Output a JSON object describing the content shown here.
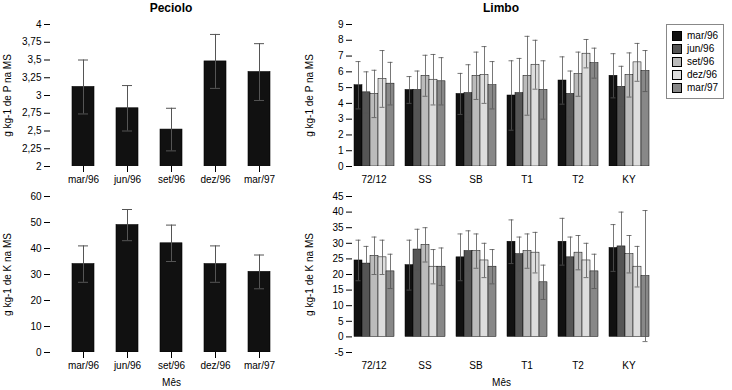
{
  "chart_data": [
    {
      "type": "bar",
      "title": "Peciolo",
      "categories": [
        "mar/96",
        "jun/96",
        "set/96",
        "dez/96",
        "mar/97"
      ],
      "values": [
        3.12,
        2.82,
        2.52,
        3.48,
        3.33
      ],
      "errors": [
        0.38,
        0.32,
        0.3,
        0.38,
        0.4
      ],
      "color": "#111111",
      "ylabel": "g kg-1 de P na MS",
      "ylim": [
        2,
        4
      ],
      "yticks": [
        2,
        {
          "value": 2.25,
          "label": "2,25"
        },
        {
          "value": 2.5,
          "label": "2,5"
        },
        {
          "value": 2.75,
          "label": "2,75"
        },
        3,
        {
          "value": 3.25,
          "label": "3,25"
        },
        {
          "value": 3.5,
          "label": "3,5"
        },
        {
          "value": 3.75,
          "label": "3,75"
        },
        4
      ],
      "grid": false
    },
    {
      "type": "bar",
      "categories": [
        "mar/96",
        "jun/96",
        "set/96",
        "dez/96",
        "mar/97"
      ],
      "values": [
        34.0,
        49.0,
        42.0,
        34.0,
        31.0
      ],
      "errors": [
        7.0,
        6.0,
        7.0,
        7.0,
        6.5
      ],
      "color": "#111111",
      "xlabel": "Mês",
      "ylabel": "g kg-1 de K na MS",
      "ylim": [
        0,
        60
      ],
      "yticks": [
        0,
        10,
        20,
        30,
        40,
        50,
        60
      ],
      "grid": false
    },
    {
      "type": "bar",
      "title": "Limbo",
      "categories": [
        "72/12",
        "SS",
        "SB",
        "T1",
        "T2",
        "KY"
      ],
      "series": [
        {
          "name": "mar/96",
          "color": "#111111",
          "values": [
            5.15,
            4.85,
            4.6,
            4.5,
            5.45,
            5.75
          ],
          "errors": [
            1.5,
            0.85,
            1.3,
            2.2,
            1.5,
            1.4
          ]
        },
        {
          "name": "jun/96",
          "color": "#555555",
          "values": [
            4.7,
            4.85,
            4.65,
            4.65,
            4.6,
            5.05
          ],
          "errors": [
            1.3,
            1.2,
            1.8,
            2.2,
            1.45,
            1.3
          ]
        },
        {
          "name": "set/96",
          "color": "#bbbbbb",
          "values": [
            4.6,
            5.75,
            5.75,
            5.75,
            5.85,
            5.8
          ],
          "errors": [
            1.5,
            1.3,
            1.5,
            2.5,
            1.4,
            1.4
          ]
        },
        {
          "name": "dez/96",
          "color": "#dddddd",
          "values": [
            5.55,
            5.5,
            5.8,
            6.45,
            7.15,
            6.6
          ],
          "errors": [
            1.8,
            1.6,
            1.8,
            1.55,
            0.9,
            1.2
          ]
        },
        {
          "name": "mar/97",
          "color": "#888888",
          "values": [
            5.25,
            5.4,
            5.15,
            4.85,
            6.55,
            6.05
          ],
          "errors": [
            1.35,
            1.5,
            1.5,
            1.85,
            0.95,
            1.3
          ]
        }
      ],
      "ylabel": "g kg-1 de P na MS",
      "ylim": [
        0,
        9
      ],
      "yticks": [
        0,
        1,
        2,
        3,
        4,
        5,
        6,
        7,
        8,
        9
      ],
      "legend": "upper right",
      "grid": false
    },
    {
      "type": "bar",
      "categories": [
        "72/12",
        "SS",
        "SB",
        "T1",
        "T2",
        "KY"
      ],
      "series": [
        {
          "name": "mar/96",
          "color": "#111111",
          "values": [
            24.5,
            23.0,
            25.5,
            30.5,
            30.5,
            28.5
          ],
          "errors": [
            6.5,
            8.0,
            7.5,
            7.0,
            7.5,
            7.5
          ]
        },
        {
          "name": "jun/96",
          "color": "#555555",
          "values": [
            23.5,
            28.0,
            27.5,
            26.5,
            25.5,
            29.0
          ],
          "errors": [
            5.5,
            6.5,
            6.5,
            5.5,
            6.5,
            11.0
          ]
        },
        {
          "name": "set/96",
          "color": "#bbbbbb",
          "values": [
            26.0,
            29.5,
            27.5,
            27.5,
            27.0,
            26.5
          ],
          "errors": [
            6.0,
            5.5,
            5.5,
            5.5,
            5.5,
            6.0
          ]
        },
        {
          "name": "dez/96",
          "color": "#dddddd",
          "values": [
            25.5,
            22.5,
            24.5,
            27.0,
            24.5,
            22.5
          ],
          "errors": [
            5.5,
            5.5,
            5.5,
            6.5,
            5.5,
            6.5
          ]
        },
        {
          "name": "mar/97",
          "color": "#888888",
          "values": [
            21.0,
            22.5,
            22.5,
            17.5,
            21.0,
            19.5
          ],
          "errors": [
            5.5,
            6.0,
            5.5,
            5.5,
            5.5,
            21.0
          ]
        }
      ],
      "xlabel": "Mês",
      "ylabel": "g kg-1 de K na MS",
      "ylim": [
        -5,
        45
      ],
      "yticks": [
        -5,
        0,
        5,
        10,
        15,
        20,
        25,
        30,
        35,
        40,
        45
      ],
      "grid": false
    }
  ]
}
